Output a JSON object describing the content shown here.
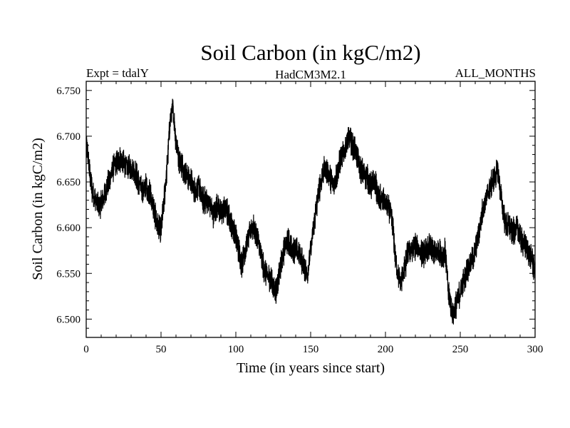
{
  "chart_data": {
    "type": "line",
    "title": "Soil Carbon (in kgC/m2)",
    "subtitle_left": "Expt = tdalY",
    "subtitle_center": "HadCM3M2.1",
    "subtitle_right": "ALL_MONTHS",
    "xlabel": "Time (in years since start)",
    "ylabel": "Soil Carbon (in kgC/m2)",
    "xlim": [
      0,
      300
    ],
    "ylim": [
      6.48,
      6.76
    ],
    "xticks": [
      0,
      50,
      100,
      150,
      200,
      250,
      300
    ],
    "xtick_labels": [
      "0",
      "50",
      "100",
      "150",
      "200",
      "250",
      "300"
    ],
    "yticks": [
      6.5,
      6.55,
      6.6,
      6.65,
      6.7,
      6.75
    ],
    "ytick_labels": [
      "6.500",
      "6.550",
      "6.600",
      "6.650",
      "6.700",
      "6.750"
    ],
    "line_color": "#000000",
    "series": [
      {
        "name": "Soil Carbon",
        "x": [
          0,
          2,
          4,
          6,
          8,
          10,
          12,
          15,
          18,
          20,
          23,
          25,
          28,
          30,
          33,
          35,
          38,
          40,
          43,
          45,
          48,
          50,
          52,
          54,
          56,
          58,
          60,
          62,
          65,
          68,
          70,
          73,
          75,
          78,
          80,
          83,
          85,
          88,
          90,
          93,
          95,
          98,
          100,
          102,
          104,
          106,
          108,
          110,
          112,
          115,
          118,
          120,
          123,
          125,
          127,
          130,
          133,
          135,
          138,
          140,
          143,
          145,
          148,
          150,
          152,
          155,
          158,
          160,
          163,
          165,
          168,
          170,
          173,
          175,
          178,
          180,
          183,
          185,
          188,
          190,
          193,
          195,
          198,
          200,
          203,
          205,
          207,
          210,
          213,
          215,
          218,
          220,
          223,
          225,
          228,
          230,
          233,
          235,
          238,
          240,
          242,
          245,
          248,
          250,
          253,
          255,
          258,
          260,
          263,
          265,
          268,
          270,
          273,
          275,
          278,
          280,
          283,
          285,
          288,
          290,
          293,
          295,
          298,
          300
        ],
        "y": [
          6.695,
          6.665,
          6.64,
          6.63,
          6.625,
          6.625,
          6.635,
          6.65,
          6.665,
          6.67,
          6.675,
          6.67,
          6.665,
          6.665,
          6.66,
          6.65,
          6.64,
          6.645,
          6.635,
          6.62,
          6.6,
          6.595,
          6.63,
          6.665,
          6.715,
          6.73,
          6.695,
          6.675,
          6.665,
          6.655,
          6.65,
          6.64,
          6.645,
          6.63,
          6.63,
          6.625,
          6.615,
          6.625,
          6.615,
          6.62,
          6.615,
          6.6,
          6.59,
          6.575,
          6.56,
          6.575,
          6.585,
          6.6,
          6.6,
          6.585,
          6.56,
          6.55,
          6.545,
          6.535,
          6.53,
          6.56,
          6.58,
          6.585,
          6.575,
          6.575,
          6.57,
          6.56,
          6.55,
          6.575,
          6.6,
          6.635,
          6.66,
          6.665,
          6.655,
          6.645,
          6.66,
          6.675,
          6.685,
          6.7,
          6.69,
          6.685,
          6.665,
          6.66,
          6.655,
          6.645,
          6.65,
          6.635,
          6.63,
          6.625,
          6.62,
          6.6,
          6.56,
          6.54,
          6.555,
          6.575,
          6.575,
          6.58,
          6.575,
          6.57,
          6.575,
          6.58,
          6.57,
          6.575,
          6.57,
          6.575,
          6.53,
          6.505,
          6.52,
          6.53,
          6.545,
          6.555,
          6.565,
          6.575,
          6.6,
          6.62,
          6.635,
          6.645,
          6.655,
          6.665,
          6.625,
          6.605,
          6.6,
          6.595,
          6.6,
          6.59,
          6.58,
          6.575,
          6.565,
          6.55
        ]
      }
    ]
  }
}
